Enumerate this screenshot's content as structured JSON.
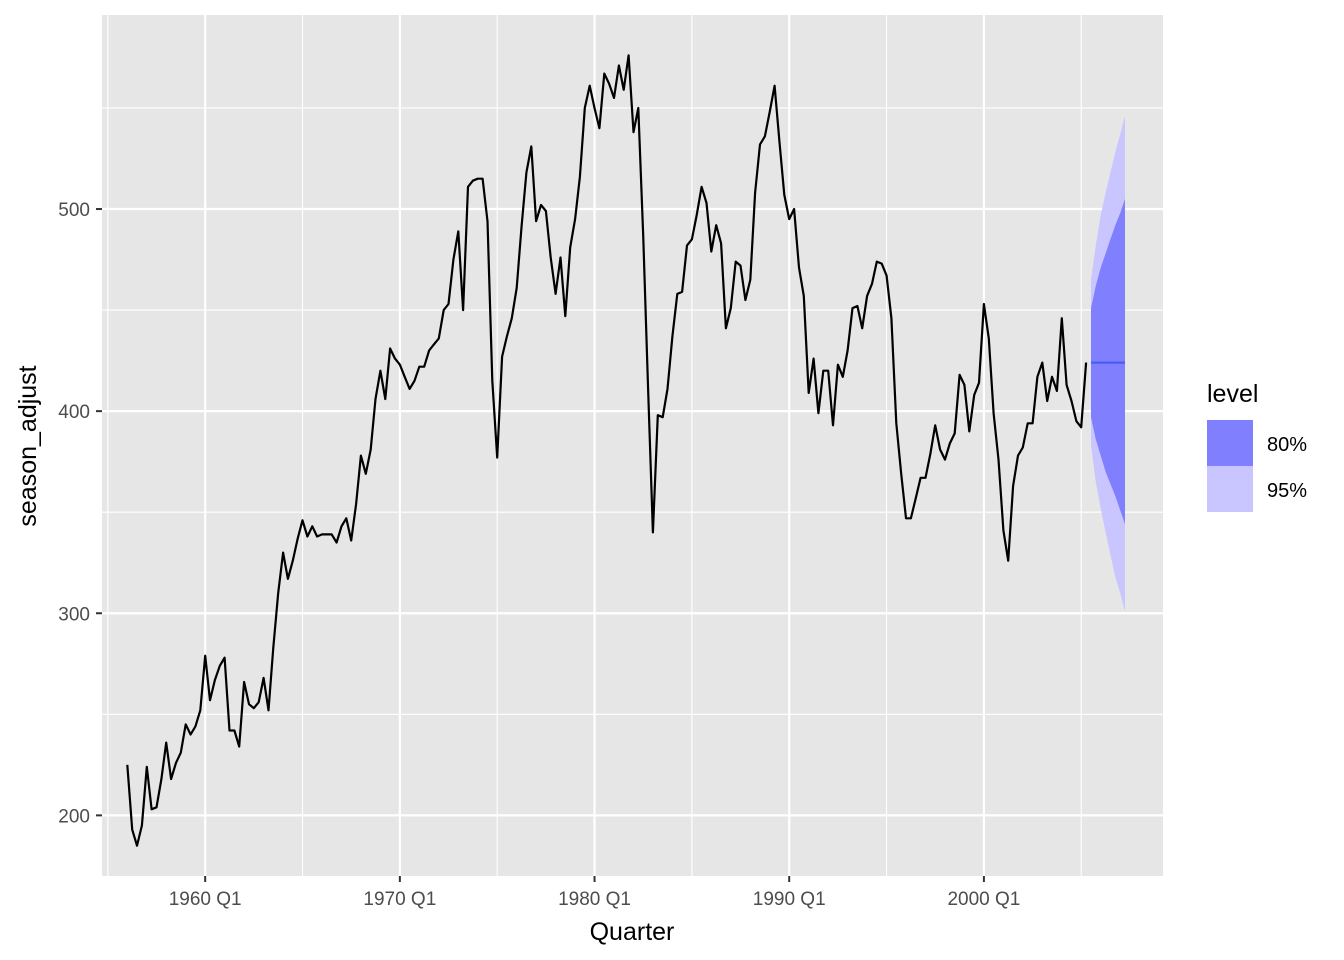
{
  "chart_data": {
    "type": "line",
    "xlabel": "Quarter",
    "ylabel": "season_adjust",
    "x_tick_labels": [
      "1960 Q1",
      "1970 Q1",
      "1980 Q1",
      "1990 Q1",
      "2000 Q1"
    ],
    "x_tick_values": [
      1960,
      1970,
      1980,
      1990,
      2000
    ],
    "y_tick_labels": [
      "200",
      "300",
      "400",
      "500"
    ],
    "y_tick_values": [
      200,
      300,
      400,
      500
    ],
    "xlim": [
      1954.7,
      2009.2
    ],
    "ylim": [
      170,
      596
    ],
    "grid": true,
    "legend": {
      "title": "level",
      "position": "right",
      "items": [
        {
          "label": "80%",
          "color": "#8080ff"
        },
        {
          "label": "95%",
          "color": "#c8c5ff"
        }
      ]
    },
    "colors": {
      "panel": "#e6e6e6",
      "grid": "#ffffff",
      "line": "#000000",
      "forecast_line": "#4b5cf5",
      "band_80": "#8080ff",
      "band_95": "#c8c5ff"
    },
    "series": [
      {
        "values": [
          [
            1956.0,
            225
          ],
          [
            1956.25,
            193
          ],
          [
            1956.5,
            185
          ],
          [
            1956.75,
            195
          ],
          [
            1957.0,
            224
          ],
          [
            1957.25,
            203
          ],
          [
            1957.5,
            204
          ],
          [
            1957.75,
            218
          ],
          [
            1958.0,
            236
          ],
          [
            1958.25,
            218
          ],
          [
            1958.5,
            226
          ],
          [
            1958.75,
            231
          ],
          [
            1959.0,
            245
          ],
          [
            1959.25,
            240
          ],
          [
            1959.5,
            244
          ],
          [
            1959.75,
            252
          ],
          [
            1960.0,
            279
          ],
          [
            1960.25,
            257
          ],
          [
            1960.5,
            267
          ],
          [
            1960.75,
            274
          ],
          [
            1961.0,
            278
          ],
          [
            1961.25,
            242
          ],
          [
            1961.5,
            242
          ],
          [
            1961.75,
            234
          ],
          [
            1962.0,
            266
          ],
          [
            1962.25,
            255
          ],
          [
            1962.5,
            253
          ],
          [
            1962.75,
            256
          ],
          [
            1963.0,
            268
          ],
          [
            1963.25,
            252
          ],
          [
            1963.5,
            283
          ],
          [
            1963.75,
            310
          ],
          [
            1964.0,
            330
          ],
          [
            1964.25,
            317
          ],
          [
            1964.5,
            326
          ],
          [
            1964.75,
            337
          ],
          [
            1965.0,
            346
          ],
          [
            1965.25,
            338
          ],
          [
            1965.5,
            343
          ],
          [
            1965.75,
            338
          ],
          [
            1966.0,
            339
          ],
          [
            1966.25,
            339
          ],
          [
            1966.5,
            339
          ],
          [
            1966.75,
            335
          ],
          [
            1967.0,
            343
          ],
          [
            1967.25,
            347
          ],
          [
            1967.5,
            336
          ],
          [
            1967.75,
            354
          ],
          [
            1968.0,
            378
          ],
          [
            1968.25,
            369
          ],
          [
            1968.5,
            381
          ],
          [
            1968.75,
            406
          ],
          [
            1969.0,
            420
          ],
          [
            1969.25,
            406
          ],
          [
            1969.5,
            431
          ],
          [
            1969.75,
            426
          ],
          [
            1970.0,
            423
          ],
          [
            1970.25,
            417
          ],
          [
            1970.5,
            411
          ],
          [
            1970.75,
            415
          ],
          [
            1971.0,
            422
          ],
          [
            1971.25,
            422
          ],
          [
            1971.5,
            430
          ],
          [
            1971.75,
            433
          ],
          [
            1972.0,
            436
          ],
          [
            1972.25,
            450
          ],
          [
            1972.5,
            453
          ],
          [
            1972.75,
            475
          ],
          [
            1973.0,
            489
          ],
          [
            1973.25,
            450
          ],
          [
            1973.5,
            511
          ],
          [
            1973.75,
            514
          ],
          [
            1974.0,
            515
          ],
          [
            1974.25,
            515
          ],
          [
            1974.5,
            494
          ],
          [
            1974.75,
            415
          ],
          [
            1975.0,
            377
          ],
          [
            1975.25,
            427
          ],
          [
            1975.5,
            437
          ],
          [
            1975.75,
            446
          ],
          [
            1976.0,
            461
          ],
          [
            1976.25,
            491
          ],
          [
            1976.5,
            518
          ],
          [
            1976.75,
            531
          ],
          [
            1977.0,
            494
          ],
          [
            1977.25,
            502
          ],
          [
            1977.5,
            499
          ],
          [
            1977.75,
            476
          ],
          [
            1978.0,
            458
          ],
          [
            1978.25,
            476
          ],
          [
            1978.5,
            447
          ],
          [
            1978.75,
            481
          ],
          [
            1979.0,
            495
          ],
          [
            1979.25,
            516
          ],
          [
            1979.5,
            550
          ],
          [
            1979.75,
            561
          ],
          [
            1980.0,
            550
          ],
          [
            1980.25,
            540
          ],
          [
            1980.5,
            567
          ],
          [
            1980.75,
            562
          ],
          [
            1981.0,
            555
          ],
          [
            1981.25,
            571
          ],
          [
            1981.5,
            559
          ],
          [
            1981.75,
            576
          ],
          [
            1982.0,
            538
          ],
          [
            1982.25,
            550
          ],
          [
            1982.5,
            487
          ],
          [
            1982.75,
            411
          ],
          [
            1983.0,
            340
          ],
          [
            1983.25,
            398
          ],
          [
            1983.5,
            397
          ],
          [
            1983.75,
            411
          ],
          [
            1984.0,
            437
          ],
          [
            1984.25,
            458
          ],
          [
            1984.5,
            459
          ],
          [
            1984.75,
            482
          ],
          [
            1985.0,
            485
          ],
          [
            1985.25,
            497
          ],
          [
            1985.5,
            511
          ],
          [
            1985.75,
            503
          ],
          [
            1986.0,
            479
          ],
          [
            1986.25,
            492
          ],
          [
            1986.5,
            483
          ],
          [
            1986.75,
            441
          ],
          [
            1987.0,
            451
          ],
          [
            1987.25,
            474
          ],
          [
            1987.5,
            472
          ],
          [
            1987.75,
            455
          ],
          [
            1988.0,
            465
          ],
          [
            1988.25,
            508
          ],
          [
            1988.5,
            532
          ],
          [
            1988.75,
            536
          ],
          [
            1989.0,
            548
          ],
          [
            1989.25,
            561
          ],
          [
            1989.5,
            533
          ],
          [
            1989.75,
            507
          ],
          [
            1990.0,
            495
          ],
          [
            1990.25,
            500
          ],
          [
            1990.5,
            471
          ],
          [
            1990.75,
            457
          ],
          [
            1991.0,
            409
          ],
          [
            1991.25,
            426
          ],
          [
            1991.5,
            399
          ],
          [
            1991.75,
            420
          ],
          [
            1992.0,
            420
          ],
          [
            1992.25,
            393
          ],
          [
            1992.5,
            423
          ],
          [
            1992.75,
            417
          ],
          [
            1993.0,
            430
          ],
          [
            1993.25,
            451
          ],
          [
            1993.5,
            452
          ],
          [
            1993.75,
            441
          ],
          [
            1994.0,
            457
          ],
          [
            1994.25,
            463
          ],
          [
            1994.5,
            474
          ],
          [
            1994.75,
            473
          ],
          [
            1995.0,
            467
          ],
          [
            1995.25,
            446
          ],
          [
            1995.5,
            394
          ],
          [
            1995.75,
            369
          ],
          [
            1996.0,
            347
          ],
          [
            1996.25,
            347
          ],
          [
            1996.5,
            357
          ],
          [
            1996.75,
            367
          ],
          [
            1997.0,
            367
          ],
          [
            1997.25,
            379
          ],
          [
            1997.5,
            393
          ],
          [
            1997.75,
            381
          ],
          [
            1998.0,
            376
          ],
          [
            1998.25,
            384
          ],
          [
            1998.5,
            389
          ],
          [
            1998.75,
            418
          ],
          [
            1999.0,
            413
          ],
          [
            1999.25,
            390
          ],
          [
            1999.5,
            408
          ],
          [
            1999.75,
            414
          ],
          [
            2000.0,
            453
          ],
          [
            2000.25,
            436
          ],
          [
            2000.5,
            399
          ],
          [
            2000.75,
            376
          ],
          [
            2001.0,
            341
          ],
          [
            2001.25,
            326
          ],
          [
            2001.5,
            363
          ],
          [
            2001.75,
            378
          ],
          [
            2002.0,
            382
          ],
          [
            2002.25,
            394
          ],
          [
            2002.5,
            394
          ],
          [
            2002.75,
            417
          ],
          [
            2003.0,
            424
          ],
          [
            2003.25,
            405
          ],
          [
            2003.5,
            417
          ],
          [
            2003.75,
            410
          ],
          [
            2004.0,
            446
          ],
          [
            2004.25,
            413
          ],
          [
            2004.5,
            405
          ],
          [
            2004.75,
            395
          ],
          [
            2005.0,
            392
          ],
          [
            2005.25,
            424
          ]
        ]
      }
    ],
    "forecast": {
      "x": [
        2005.5,
        2005.75,
        2006.0,
        2006.25,
        2006.5,
        2006.75,
        2007.0,
        2007.25
      ],
      "mean": [
        424,
        424,
        424,
        424,
        424,
        424,
        424,
        424
      ],
      "lo80": [
        397,
        386,
        378,
        370,
        364,
        358,
        351,
        344
      ],
      "hi80": [
        451,
        462,
        471,
        478,
        485,
        492,
        498,
        505
      ],
      "lo95": [
        383,
        365,
        352,
        340,
        329,
        318,
        310,
        301
      ],
      "hi95": [
        465,
        482,
        497,
        508,
        518,
        528,
        537,
        546
      ]
    }
  }
}
